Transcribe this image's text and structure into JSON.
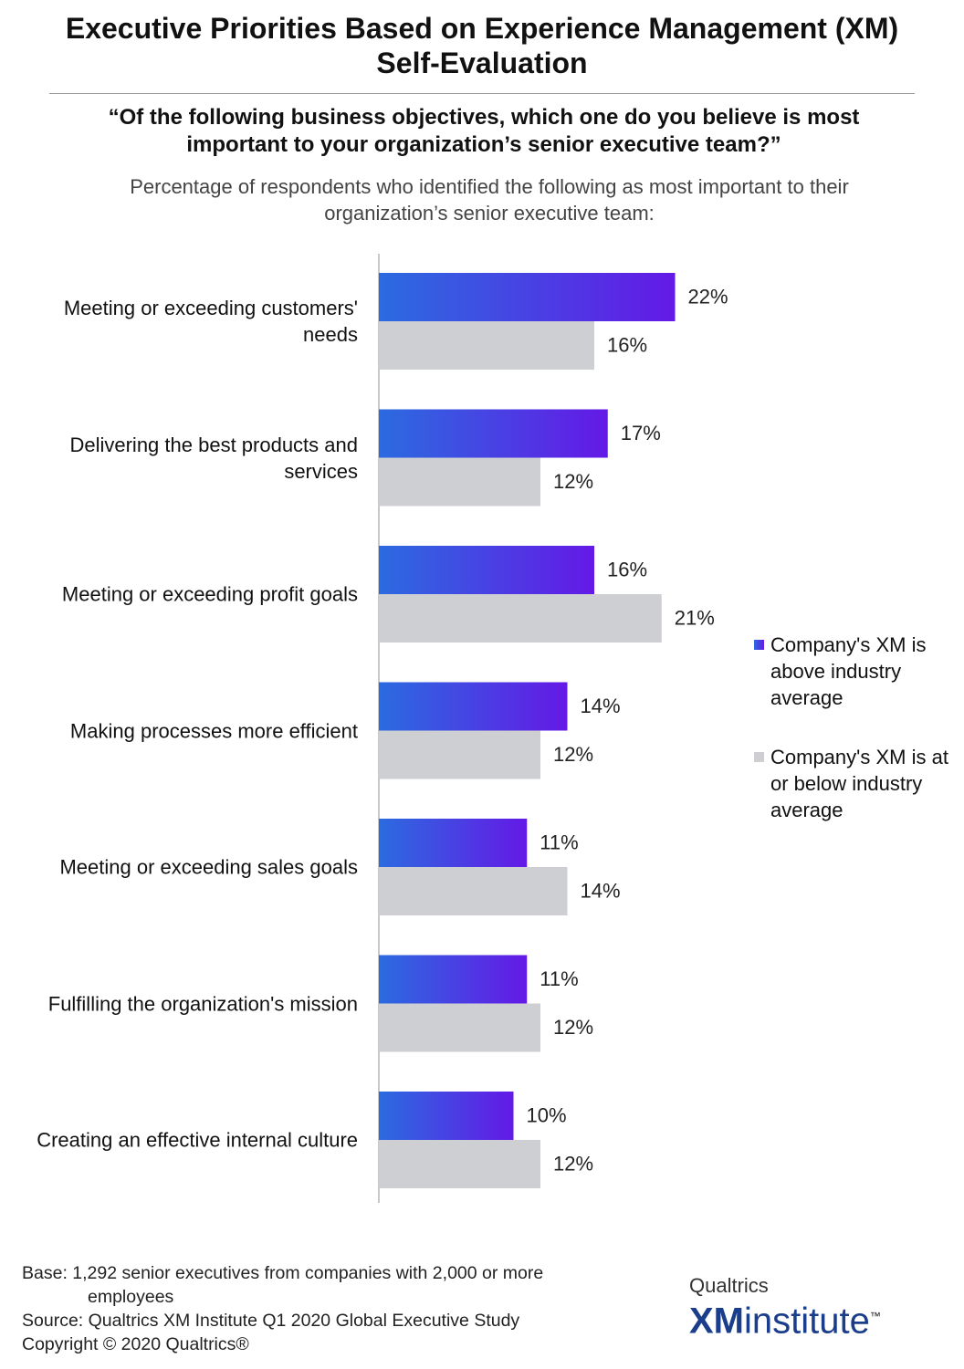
{
  "chart_data": {
    "type": "bar",
    "orientation": "horizontal",
    "title": "Executive Priorities Based on Experience Management (XM) Self-Evaluation",
    "subtitle": "“Of the following business objectives, which one do you believe is most important to your organization’s senior executive team?”",
    "description": "Percentage of respondents who identified the following as most important to their organization’s senior executive team:",
    "categories": [
      "Meeting or exceeding customers' needs",
      "Delivering the best products and services",
      "Meeting or exceeding profit goals",
      "Making processes more efficient",
      "Meeting or exceeding sales goals",
      "Fulfilling the organization's mission",
      "Creating an effective internal culture"
    ],
    "series": [
      {
        "name": "Company's XM is above industry average",
        "color": "#6419e6",
        "values": [
          22,
          17,
          16,
          14,
          11,
          11,
          10
        ],
        "value_labels": [
          "22%",
          "17%",
          "16%",
          "14%",
          "11%",
          "11%",
          "10%"
        ]
      },
      {
        "name": "Company's XM is at or below industry average",
        "color": "#cdcfd2",
        "values": [
          16,
          12,
          21,
          12,
          14,
          12,
          12
        ],
        "value_labels": [
          "16%",
          "12%",
          "21%",
          "12%",
          "14%",
          "12%",
          "12%"
        ]
      }
    ],
    "legend": "right"
  },
  "footer": {
    "base": "Base: 1,292 senior executives from companies with 2,000 or more employees",
    "source": "Source: Qualtrics XM Institute Q1 2020 Global Executive Study",
    "copyright": "Copyright © 2020 Qualtrics®"
  },
  "logo": {
    "brand": "Qualtrics",
    "mark": "XM",
    "name": "institute",
    "tm": "™"
  }
}
